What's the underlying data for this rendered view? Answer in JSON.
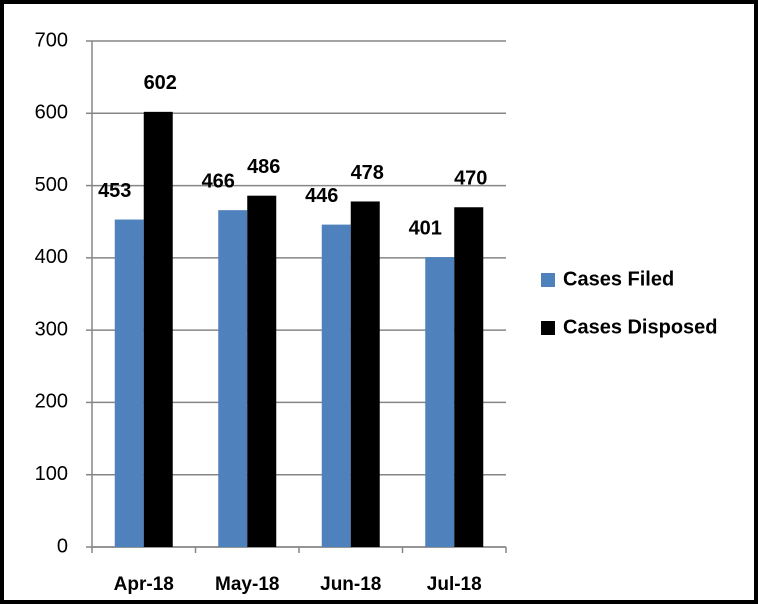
{
  "chart_data": {
    "type": "bar",
    "categories": [
      "Apr-18",
      "May-18",
      "Jun-18",
      "Jul-18"
    ],
    "series": [
      {
        "name": "Cases Filed",
        "color": "#4f81bd",
        "values": [
          453,
          466,
          446,
          401
        ]
      },
      {
        "name": "Cases Disposed",
        "color": "#000000",
        "values": [
          602,
          486,
          478,
          470
        ]
      }
    ],
    "ylim": [
      0,
      700
    ],
    "yticks": [
      0,
      100,
      200,
      300,
      400,
      500,
      600,
      700
    ],
    "grid": true,
    "legend": "right"
  }
}
